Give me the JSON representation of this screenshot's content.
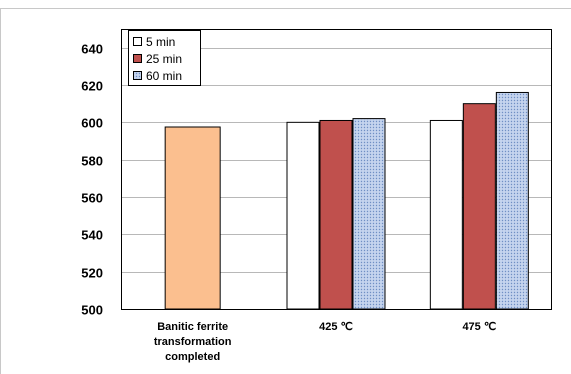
{
  "chart_data": {
    "type": "bar",
    "title": "",
    "xlabel": "",
    "ylabel": "",
    "ylim": [
      500,
      650
    ],
    "yticks": [
      500,
      520,
      540,
      560,
      580,
      600,
      620,
      640
    ],
    "grid": true,
    "legend_position": "top-left",
    "categories": [
      {
        "lines": [
          "Banitic ferrite",
          "transformation",
          "completed"
        ]
      },
      {
        "lines": [
          "425 ℃"
        ]
      },
      {
        "lines": [
          "475 ℃"
        ]
      }
    ],
    "single_bar": {
      "category_index": 0,
      "value": 597.5,
      "color": "#fbbf8f"
    },
    "series": [
      {
        "name": "5 min",
        "color": "#ffffff",
        "values": [
          null,
          600,
          601
        ]
      },
      {
        "name": "25 min",
        "color": "#c0504d",
        "values": [
          null,
          601,
          610
        ]
      },
      {
        "name": "60 min",
        "color": "#c5d4ee",
        "pattern": "dots",
        "values": [
          null,
          602,
          616
        ]
      }
    ]
  }
}
